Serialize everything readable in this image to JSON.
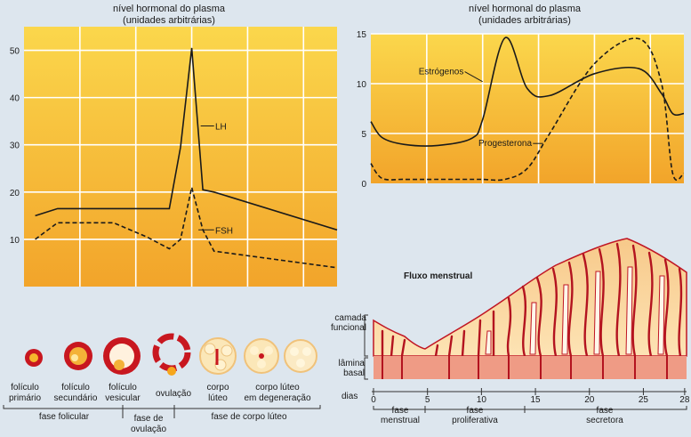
{
  "chart_data": [
    {
      "type": "line",
      "title": "nível hormonal do plasma",
      "subtitle": "(unidades arbitrárias)",
      "ylim": [
        0,
        55
      ],
      "y_ticks": [
        "10",
        "20",
        "30",
        "40",
        "50"
      ],
      "x": [
        1,
        3,
        8,
        11,
        13,
        14,
        15,
        16,
        17,
        28
      ],
      "series": [
        {
          "name": "LH",
          "values": [
            15,
            16.5,
            16.5,
            16.5,
            16.5,
            29.5,
            50.5,
            20.5,
            20,
            12
          ],
          "style": "solid"
        },
        {
          "name": "FSH",
          "values": [
            10,
            13.5,
            13.5,
            10.5,
            8,
            10,
            21,
            12,
            7.5,
            4
          ],
          "style": "dashed"
        }
      ]
    },
    {
      "type": "line",
      "title": "nível hormonal do plasma",
      "subtitle": "(unidades arbitrárias)",
      "ylim": [
        0,
        15
      ],
      "y_ticks": [
        "0",
        "5",
        "10",
        "15"
      ],
      "x": [
        0,
        1,
        3,
        6,
        9,
        10,
        12,
        14,
        16,
        20,
        24,
        26,
        27,
        28
      ],
      "series": [
        {
          "name": "Estrógenos",
          "values": [
            6.2,
            4.6,
            3.9,
            3.8,
            4.5,
            6.4,
            14.6,
            9.5,
            8.8,
            11.0,
            11.5,
            9.0,
            7.0,
            7.0
          ],
          "style": "solid"
        },
        {
          "name": "Progesterona",
          "values": [
            2.0,
            0.5,
            0.4,
            0.4,
            0.4,
            0.4,
            0.4,
            1.5,
            5.0,
            12.0,
            14.5,
            10.0,
            1.0,
            1.0
          ],
          "style": "dashed"
        }
      ]
    }
  ],
  "menstrual_panel": {
    "title": "Fluxo menstrual",
    "layer_labels": [
      "camada funcional",
      "lâmina basal"
    ],
    "axis_label": "dias",
    "day_ticks": [
      "0",
      "5",
      "10",
      "15",
      "20",
      "25",
      "28"
    ],
    "phases": [
      {
        "line1": "fase",
        "line2": "menstrual"
      },
      {
        "line1": "fase",
        "line2": "proliferativa"
      },
      {
        "line1": "fase",
        "line2": "secretora"
      }
    ]
  },
  "follicles": {
    "stages": [
      {
        "line1": "folículo",
        "line2": "primário"
      },
      {
        "line1": "folículo",
        "line2": "secundário"
      },
      {
        "line1": "folículo",
        "line2": "vesicular"
      },
      {
        "line1": "ovulação",
        "line2": ""
      },
      {
        "line1": "corpo",
        "line2": "lúteo"
      },
      {
        "line1": "corpo lúteo",
        "line2": "em degeneração"
      }
    ],
    "phases": [
      {
        "line1": "fase folicular",
        "line2": ""
      },
      {
        "line1": "fase de",
        "line2": "ovulação"
      },
      {
        "line1": "fase de corpo lúteo",
        "line2": ""
      }
    ]
  },
  "colors": {
    "plot_top": "#fbd64a",
    "plot_bottom": "#f3a62a",
    "grid": "#ffffff",
    "tissue": "#fbdca8",
    "basal": "#ef9b85",
    "blood": "#c01624"
  }
}
